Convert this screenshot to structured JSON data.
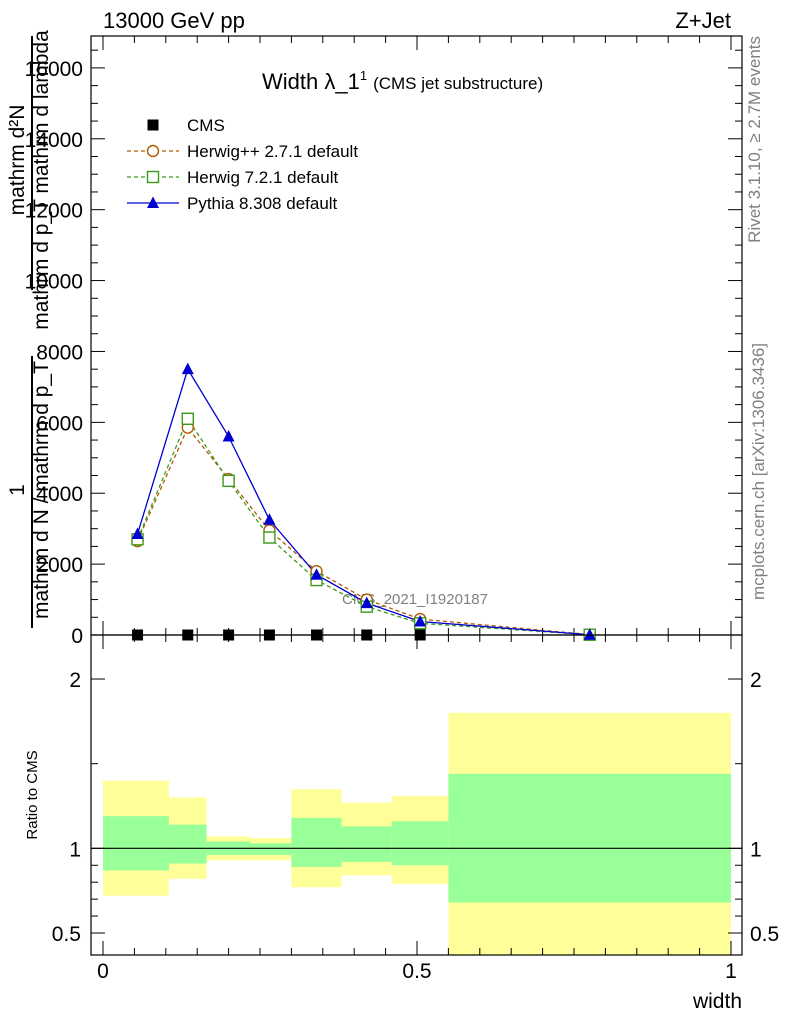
{
  "header": {
    "left": "13000 GeV pp",
    "right": "Z+Jet"
  },
  "side_text": {
    "rivet": "Rivet 3.1.10, ≥ 2.7M events",
    "mcplots": "mcplots.cern.ch [arXiv:1306.3436]"
  },
  "chart_data": [
    {
      "type": "line",
      "title": "Width λ_1",
      "title_superscript": "1",
      "subtitle": "(CMS jet substructure)",
      "watermark": "CMS_2021_I1920187",
      "ylabel_numerator": "mathrm d²N",
      "ylabel_denominator": "mathrm d p_T mathrm d lambda",
      "ylabel_prefix_numerator": "1",
      "ylabel_prefix_denominator": "mathrm d N / mathrm d p_T",
      "ylim": [
        0,
        16900
      ],
      "yticks": [
        0,
        2000,
        4000,
        6000,
        8000,
        10000,
        12000,
        14000,
        16000
      ],
      "ytick_labels": [
        "0",
        "2000",
        "4000",
        "6000",
        "8000",
        "10000",
        "12000",
        "14000",
        "16000"
      ],
      "xlim": [
        0,
        1
      ],
      "legend_placement": "top-left",
      "series": [
        {
          "name": "CMS",
          "color": "#000000",
          "marker": "filled-square",
          "x": [
            0.055,
            0.135,
            0.2,
            0.265,
            0.34,
            0.42,
            0.505,
            0.775
          ],
          "y": [
            0,
            0,
            0,
            0,
            0,
            0,
            0,
            0
          ]
        },
        {
          "name": "Herwig++ 2.7.1 default",
          "color": "#b05a00",
          "marker": "open-circle",
          "dash": "dashed",
          "x": [
            0.055,
            0.135,
            0.2,
            0.265,
            0.34,
            0.42,
            0.505,
            0.775
          ],
          "y": [
            2650,
            5850,
            4400,
            2950,
            1800,
            1000,
            450,
            10
          ]
        },
        {
          "name": "Herwig 7.2.1 default",
          "color": "#3c9a1c",
          "marker": "open-square",
          "dash": "dashed",
          "x": [
            0.055,
            0.135,
            0.2,
            0.265,
            0.34,
            0.42,
            0.505,
            0.775
          ],
          "y": [
            2700,
            6100,
            4350,
            2750,
            1550,
            800,
            330,
            8
          ]
        },
        {
          "name": "Pythia 8.308 default",
          "color": "#0000d0",
          "marker": "filled-triangle",
          "dash": "solid",
          "x": [
            0.055,
            0.135,
            0.2,
            0.265,
            0.34,
            0.42,
            0.505,
            0.775
          ],
          "y": [
            2850,
            7500,
            5600,
            3250,
            1700,
            900,
            380,
            8
          ]
        }
      ]
    },
    {
      "type": "area",
      "ylabel": "Ratio to CMS",
      "xlabel": "width",
      "ylim": [
        0.37,
        2.26
      ],
      "yticks": [
        0.5,
        1,
        2
      ],
      "ytick_labels": [
        "0.5",
        "1",
        "2"
      ],
      "xlim": [
        0,
        1
      ],
      "xticks": [
        0,
        0.5,
        1
      ],
      "xtick_labels": [
        "0",
        "0.5",
        "1"
      ],
      "reference_line": 1,
      "band_colors": {
        "outer": "#ffff99",
        "inner": "#99ff99"
      },
      "bins": [
        {
          "x0": 0.0,
          "x1": 0.105,
          "outer": [
            0.72,
            1.4
          ],
          "inner": [
            0.87,
            1.19
          ]
        },
        {
          "x0": 0.105,
          "x1": 0.165,
          "outer": [
            0.82,
            1.3
          ],
          "inner": [
            0.91,
            1.14
          ]
        },
        {
          "x0": 0.165,
          "x1": 0.235,
          "outer": [
            0.93,
            1.07
          ],
          "inner": [
            0.96,
            1.04
          ]
        },
        {
          "x0": 0.235,
          "x1": 0.3,
          "outer": [
            0.93,
            1.06
          ],
          "inner": [
            0.96,
            1.03
          ]
        },
        {
          "x0": 0.3,
          "x1": 0.38,
          "outer": [
            0.77,
            1.35
          ],
          "inner": [
            0.89,
            1.18
          ]
        },
        {
          "x0": 0.38,
          "x1": 0.46,
          "outer": [
            0.84,
            1.27
          ],
          "inner": [
            0.92,
            1.13
          ]
        },
        {
          "x0": 0.46,
          "x1": 0.55,
          "outer": [
            0.79,
            1.31
          ],
          "inner": [
            0.9,
            1.16
          ]
        },
        {
          "x0": 0.55,
          "x1": 1.0,
          "outer": [
            0.37,
            1.8
          ],
          "inner": [
            0.68,
            1.44
          ]
        }
      ]
    }
  ]
}
